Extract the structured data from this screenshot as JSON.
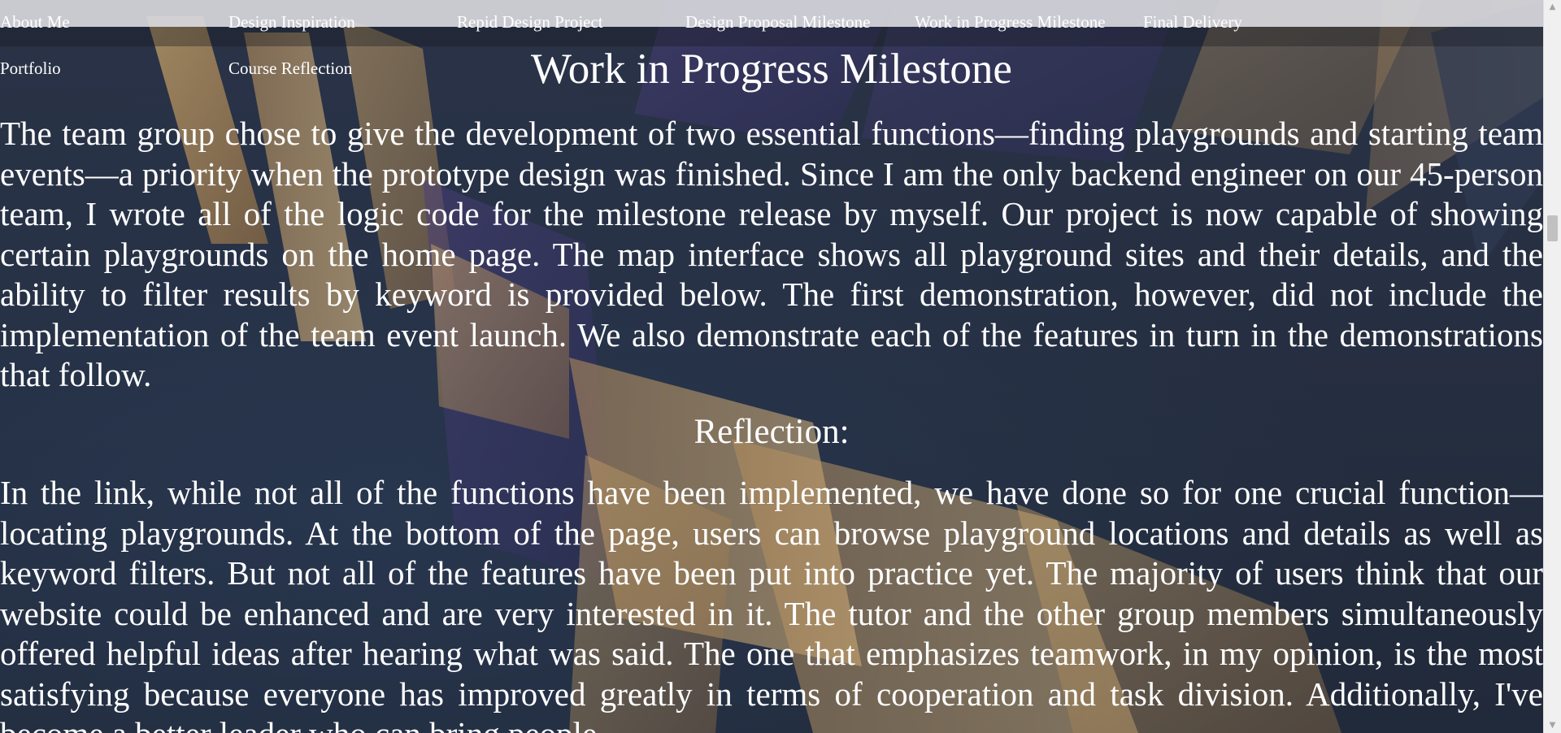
{
  "nav": {
    "row1": [
      "About Me",
      "Design Inspiration",
      "Repid Design Project",
      "Design Proposal Milestone",
      "Work in Progress Milestone",
      "Final Delivery"
    ],
    "row2": [
      "Portfolio",
      "Course Reflection"
    ]
  },
  "main": {
    "title": "Work in Progress Milestone",
    "intro": "The team group chose to give the development of two essential functions—finding playgrounds and starting team events—a priority when the prototype design was finished. Since I am the only backend engineer on our 45-person team, I wrote all of the logic code for the milestone release by myself. Our project is now capable of showing certain playgrounds on the home page. The map interface shows all playground sites and their details, and the ability to filter results by keyword is provided below. The first demonstration, however, did not include the implementation of the team event launch. We also demonstrate each of the features in turn in the demonstrations that follow.",
    "reflection_heading": "Reflection:",
    "reflection": "In the link, while not all of the functions have been implemented, we have done so for one crucial function—locating playgrounds. At the bottom of the page, users can browse playground locations and details as well as keyword filters. But not all of the features have been put into practice yet. The majority of users think that our website could be enhanced and are very interested in it. The tutor and the other group members simultaneously offered helpful ideas after hearing what was said. The one that emphasizes teamwork, in my opinion, is the most satisfying because everyone has improved greatly in terms of cooperation and task division. Additionally, I've become a better leader who can bring people"
  },
  "scrollbar": {
    "up_icon": "triangle-up",
    "down_icon": "triangle-down"
  },
  "colors": {
    "text": "#ffffff",
    "background": "#232c3d",
    "nav_strip": "#d7d7dc"
  }
}
